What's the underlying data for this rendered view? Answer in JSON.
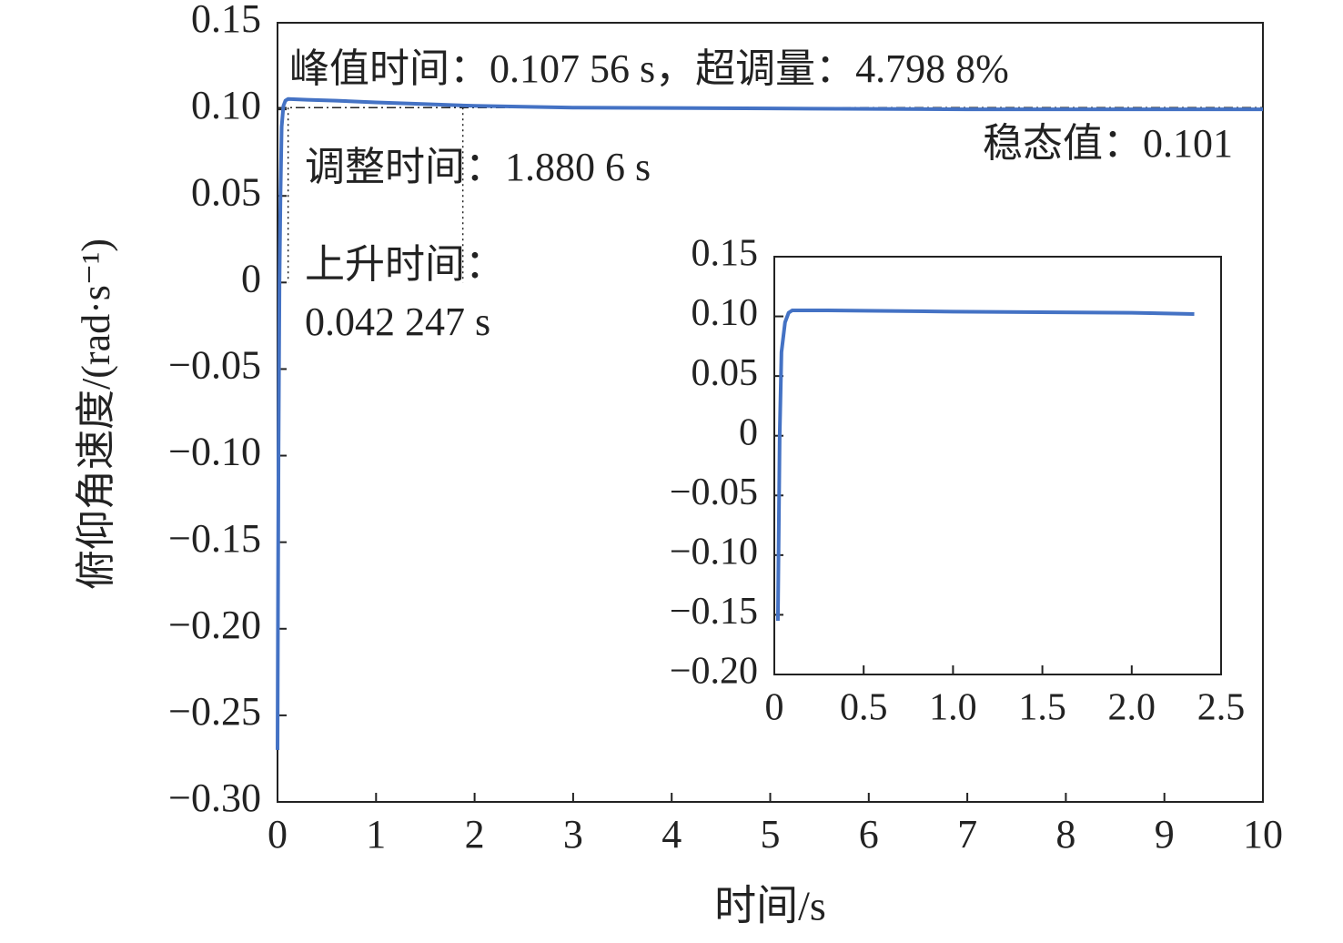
{
  "chart_data": [
    {
      "type": "line",
      "x_label": "时间/s",
      "y_label": "俯仰角速度/(rad·s⁻¹)",
      "xlim": [
        0,
        10
      ],
      "xticks": [
        0,
        1,
        2,
        3,
        4,
        5,
        6,
        7,
        8,
        9,
        10
      ],
      "ylim": [
        -0.3,
        0.15
      ],
      "yticks": [
        {
          "value": -0.3,
          "label": "−0.30"
        },
        {
          "value": -0.25,
          "label": "−0.25"
        },
        {
          "value": -0.2,
          "label": "−0.20"
        },
        {
          "value": -0.15,
          "label": "−0.15"
        },
        {
          "value": -0.1,
          "label": "−0.10"
        },
        {
          "value": -0.05,
          "label": "−0.05"
        },
        0,
        0.05,
        {
          "value": 0.1,
          "label": "0.10"
        },
        0.15
      ],
      "grid": false,
      "series": [
        {
          "color": "#4472c4",
          "x": [
            0,
            0.01,
            0.02,
            0.03,
            0.042,
            0.06,
            0.08,
            0.108,
            0.3,
            0.6,
            1,
            1.5,
            2,
            3,
            5,
            7,
            10
          ],
          "values": [
            -0.27,
            -0.1,
            0,
            0.05,
            0.09,
            0.102,
            0.105,
            0.106,
            0.1055,
            0.105,
            0.104,
            0.103,
            0.102,
            0.101,
            0.1005,
            0.1,
            0.1
          ]
        }
      ],
      "reference_x": [
        0.10756,
        1.8806
      ],
      "reference_y": 0.101,
      "annotations": [
        "峰值时间：0.107 56 s，超调量：4.798 8%",
        "稳态值：0.101",
        "调整时间：1.880 6 s",
        "上升时间：",
        "0.042 247 s"
      ]
    },
    {
      "type": "line",
      "xlim": [
        0,
        2.5
      ],
      "xticks": [
        0,
        0.5,
        {
          "value": 1,
          "label": "1.0"
        },
        1.5,
        {
          "value": 2,
          "label": "2.0"
        },
        2.5
      ],
      "ylim": [
        -0.2,
        0.15
      ],
      "yticks": [
        {
          "value": -0.2,
          "label": "−0.20"
        },
        {
          "value": -0.15,
          "label": "−0.15"
        },
        {
          "value": -0.1,
          "label": "−0.10"
        },
        {
          "value": -0.05,
          "label": "−0.05"
        },
        0,
        0.05,
        {
          "value": 0.1,
          "label": "0.10"
        },
        0.15
      ],
      "grid": false,
      "series": [
        {
          "color": "#4472c4",
          "x": [
            0.02,
            0.03,
            0.04,
            0.06,
            0.08,
            0.1,
            0.3,
            1,
            2,
            2.35
          ],
          "values": [
            -0.155,
            0,
            0.07,
            0.095,
            0.103,
            0.105,
            0.105,
            0.104,
            0.103,
            0.102
          ]
        }
      ]
    }
  ]
}
